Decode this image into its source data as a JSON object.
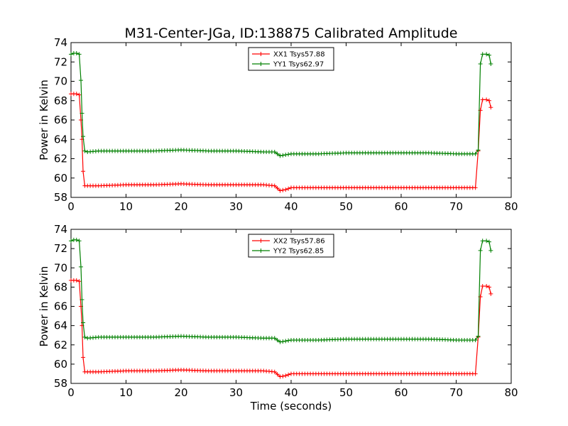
{
  "figure": {
    "title": "M31-Center-JGa, ID:138875 Calibrated Amplitude",
    "xlabel": "Time (seconds)"
  },
  "chart_data": [
    {
      "type": "line",
      "xlabel": "",
      "ylabel": "Power in Kelvin",
      "xlim": [
        0,
        80
      ],
      "ylim": [
        58,
        74
      ],
      "xticks": [
        "0",
        "10",
        "20",
        "30",
        "40",
        "50",
        "60",
        "70",
        "80"
      ],
      "yticks": [
        "58",
        "60",
        "62",
        "64",
        "66",
        "68",
        "70",
        "72",
        "74"
      ],
      "grid": false,
      "legend": "top-center",
      "marker": "+",
      "series": [
        {
          "name": "XX1 Tsys57.88",
          "color": "#ff0000",
          "points": [
            [
              0,
              68.7
            ],
            [
              0.5,
              68.7
            ],
            [
              1,
              68.7
            ],
            [
              1.5,
              68.6
            ],
            [
              1.8,
              66.0
            ],
            [
              2.0,
              64.0
            ],
            [
              2.2,
              60.7
            ],
            [
              2.5,
              59.2
            ],
            [
              3,
              59.2
            ],
            [
              5,
              59.2
            ],
            [
              10,
              59.3
            ],
            [
              15,
              59.3
            ],
            [
              20,
              59.4
            ],
            [
              25,
              59.3
            ],
            [
              30,
              59.3
            ],
            [
              35,
              59.3
            ],
            [
              37,
              59.2
            ],
            [
              38,
              58.7
            ],
            [
              39,
              58.8
            ],
            [
              40,
              59.0
            ],
            [
              45,
              59.0
            ],
            [
              50,
              59.0
            ],
            [
              55,
              59.0
            ],
            [
              60,
              59.0
            ],
            [
              65,
              59.0
            ],
            [
              70,
              59.0
            ],
            [
              73.5,
              59.0
            ],
            [
              74,
              62.8
            ],
            [
              74.4,
              67.0
            ],
            [
              74.8,
              68.1
            ],
            [
              75.5,
              68.1
            ],
            [
              76,
              68.0
            ],
            [
              76.3,
              67.3
            ]
          ]
        },
        {
          "name": "YY1 Tsys62.97",
          "color": "#008000",
          "points": [
            [
              0,
              72.8
            ],
            [
              0.5,
              72.9
            ],
            [
              1,
              72.9
            ],
            [
              1.5,
              72.8
            ],
            [
              1.8,
              70.1
            ],
            [
              2.0,
              66.7
            ],
            [
              2.2,
              64.3
            ],
            [
              2.5,
              62.8
            ],
            [
              3,
              62.7
            ],
            [
              5,
              62.8
            ],
            [
              10,
              62.8
            ],
            [
              15,
              62.8
            ],
            [
              20,
              62.9
            ],
            [
              25,
              62.8
            ],
            [
              30,
              62.8
            ],
            [
              35,
              62.7
            ],
            [
              37,
              62.7
            ],
            [
              38,
              62.3
            ],
            [
              39,
              62.4
            ],
            [
              40,
              62.5
            ],
            [
              45,
              62.5
            ],
            [
              50,
              62.6
            ],
            [
              55,
              62.6
            ],
            [
              60,
              62.6
            ],
            [
              65,
              62.6
            ],
            [
              70,
              62.5
            ],
            [
              73.5,
              62.5
            ],
            [
              74,
              62.9
            ],
            [
              74.4,
              71.8
            ],
            [
              74.8,
              72.8
            ],
            [
              75.5,
              72.8
            ],
            [
              76,
              72.7
            ],
            [
              76.3,
              71.8
            ]
          ]
        }
      ]
    },
    {
      "type": "line",
      "xlabel": "Time (seconds)",
      "ylabel": "Power in Kelvin",
      "xlim": [
        0,
        80
      ],
      "ylim": [
        58,
        74
      ],
      "xticks": [
        "0",
        "10",
        "20",
        "30",
        "40",
        "50",
        "60",
        "70",
        "80"
      ],
      "yticks": [
        "58",
        "60",
        "62",
        "64",
        "66",
        "68",
        "70",
        "72",
        "74"
      ],
      "grid": false,
      "legend": "top-center",
      "marker": "+",
      "series": [
        {
          "name": "XX2 Tsys57.86",
          "color": "#ff0000",
          "points": [
            [
              0,
              68.7
            ],
            [
              0.5,
              68.7
            ],
            [
              1,
              68.7
            ],
            [
              1.5,
              68.6
            ],
            [
              1.8,
              66.0
            ],
            [
              2.0,
              64.0
            ],
            [
              2.2,
              60.7
            ],
            [
              2.5,
              59.2
            ],
            [
              3,
              59.2
            ],
            [
              5,
              59.2
            ],
            [
              10,
              59.3
            ],
            [
              15,
              59.3
            ],
            [
              20,
              59.4
            ],
            [
              25,
              59.3
            ],
            [
              30,
              59.3
            ],
            [
              35,
              59.3
            ],
            [
              37,
              59.2
            ],
            [
              38,
              58.7
            ],
            [
              39,
              58.8
            ],
            [
              40,
              59.0
            ],
            [
              45,
              59.0
            ],
            [
              50,
              59.0
            ],
            [
              55,
              59.0
            ],
            [
              60,
              59.0
            ],
            [
              65,
              59.0
            ],
            [
              70,
              59.0
            ],
            [
              73.5,
              59.0
            ],
            [
              74,
              62.8
            ],
            [
              74.4,
              67.0
            ],
            [
              74.8,
              68.1
            ],
            [
              75.5,
              68.1
            ],
            [
              76,
              68.0
            ],
            [
              76.3,
              67.3
            ]
          ]
        },
        {
          "name": "YY2 Tsys62.85",
          "color": "#008000",
          "points": [
            [
              0,
              72.8
            ],
            [
              0.5,
              72.9
            ],
            [
              1,
              72.9
            ],
            [
              1.5,
              72.8
            ],
            [
              1.8,
              70.1
            ],
            [
              2.0,
              66.7
            ],
            [
              2.2,
              64.3
            ],
            [
              2.5,
              62.8
            ],
            [
              3,
              62.7
            ],
            [
              5,
              62.8
            ],
            [
              10,
              62.8
            ],
            [
              15,
              62.8
            ],
            [
              20,
              62.9
            ],
            [
              25,
              62.8
            ],
            [
              30,
              62.8
            ],
            [
              35,
              62.7
            ],
            [
              37,
              62.7
            ],
            [
              38,
              62.3
            ],
            [
              39,
              62.4
            ],
            [
              40,
              62.5
            ],
            [
              45,
              62.5
            ],
            [
              50,
              62.6
            ],
            [
              55,
              62.6
            ],
            [
              60,
              62.6
            ],
            [
              65,
              62.6
            ],
            [
              70,
              62.5
            ],
            [
              73.5,
              62.5
            ],
            [
              74,
              62.9
            ],
            [
              74.4,
              71.8
            ],
            [
              74.8,
              72.8
            ],
            [
              75.5,
              72.8
            ],
            [
              76,
              72.7
            ],
            [
              76.3,
              71.8
            ]
          ]
        }
      ]
    }
  ]
}
